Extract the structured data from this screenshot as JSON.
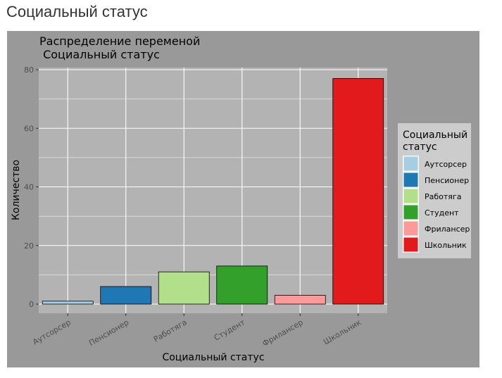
{
  "page": {
    "heading": "Социальный статус"
  },
  "chart_data": {
    "type": "bar",
    "title_lines": [
      "Распределение переменой",
      " Социальный статус"
    ],
    "xlabel": "Социальный статус",
    "ylabel": "Количество",
    "categories": [
      "Аутсорсер",
      "Пенсионер",
      "Работяга",
      "Студент",
      "Фрилансер",
      "Школьник"
    ],
    "values": [
      1,
      6,
      11,
      13,
      3,
      77
    ],
    "ylim": [
      0,
      80
    ],
    "yticks": [
      0,
      20,
      40,
      60,
      80
    ],
    "grid": true,
    "legend": {
      "title_lines": [
        "Социальный",
        "статус"
      ],
      "placement": "right"
    },
    "colors": {
      "Аутсорсер": "#a6cee3",
      "Пенсионер": "#1f78b4",
      "Работяга": "#b2df8a",
      "Студент": "#33a02c",
      "Фрилансер": "#fb9a99",
      "Школьник": "#e31a1c"
    },
    "style": {
      "plot_background": "#999999",
      "panel_background": "#b3b3b3",
      "legend_background": "#cccccc",
      "grid_color": "#ffffff",
      "bar_outline": "#000000"
    }
  }
}
